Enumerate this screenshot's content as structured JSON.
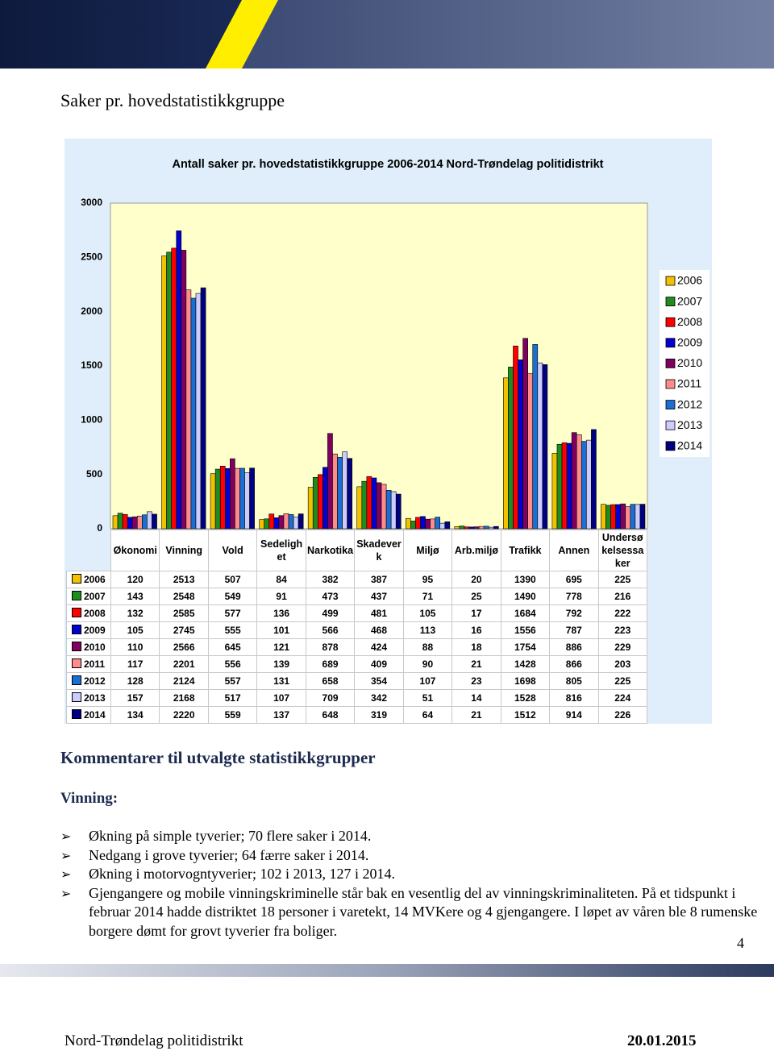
{
  "page_title": "Saker pr. hovedstatistikkgruppe",
  "chart_data": {
    "type": "bar",
    "title": "Antall saker pr. hovedstatistikkgruppe 2006-2014 Nord-Trøndelag politidistrikt",
    "categories": [
      "Økonomi",
      "Vinning",
      "Vold",
      "Sedelighet",
      "Narkotika",
      "Skadeverk",
      "Miljø",
      "Arb.miljø",
      "Trafikk",
      "Annen",
      "Undersøkelsessaker"
    ],
    "series": [
      {
        "name": "2006",
        "color": "#f2c200",
        "values": [
          120,
          2513,
          507,
          84,
          382,
          387,
          95,
          20,
          1390,
          695,
          225
        ]
      },
      {
        "name": "2007",
        "color": "#1e8c1e",
        "values": [
          143,
          2548,
          549,
          91,
          473,
          437,
          71,
          25,
          1490,
          778,
          216
        ]
      },
      {
        "name": "2008",
        "color": "#ff0000",
        "values": [
          132,
          2585,
          577,
          136,
          499,
          481,
          105,
          17,
          1684,
          792,
          222
        ]
      },
      {
        "name": "2009",
        "color": "#0000d0",
        "values": [
          105,
          2745,
          555,
          101,
          566,
          468,
          113,
          16,
          1556,
          787,
          223
        ]
      },
      {
        "name": "2010",
        "color": "#800060",
        "values": [
          110,
          2566,
          645,
          121,
          878,
          424,
          88,
          18,
          1754,
          886,
          229
        ]
      },
      {
        "name": "2011",
        "color": "#ff8c8c",
        "values": [
          117,
          2201,
          556,
          139,
          689,
          409,
          90,
          21,
          1428,
          866,
          203
        ]
      },
      {
        "name": "2012",
        "color": "#1a6fd0",
        "values": [
          128,
          2124,
          557,
          131,
          658,
          354,
          107,
          23,
          1698,
          805,
          225
        ]
      },
      {
        "name": "2013",
        "color": "#ccccff",
        "values": [
          157,
          2168,
          517,
          107,
          709,
          342,
          51,
          14,
          1528,
          816,
          224
        ]
      },
      {
        "name": "2014",
        "color": "#000080",
        "values": [
          134,
          2220,
          559,
          137,
          648,
          319,
          64,
          21,
          1512,
          914,
          226
        ]
      }
    ],
    "ylim": [
      0,
      3000
    ],
    "yticks": [
      0,
      500,
      1000,
      1500,
      2000,
      2500,
      3000
    ],
    "grid": false,
    "legend": "right"
  },
  "section_title": "Kommentarer til utvalgte statistikkgrupper",
  "subsection": "Vinning:",
  "bullets": [
    "Økning på simple tyverier; 70 flere saker i 2014.",
    "Nedgang i grove tyverier; 64 færre saker i 2014.",
    "Økning i motorvogntyverier; 102 i 2013, 127 i 2014.",
    "Gjengangere og mobile vinningskriminelle står bak en vesentlig del av vinningskriminaliteten. På et tidspunkt i februar 2014 hadde distriktet 18 personer i varetekt, 14 MVKere og 4 gjengangere. I løpet av våren ble 8 rumenske borgere dømt for grovt tyverier fra boliger."
  ],
  "page_number": "4",
  "footer": {
    "left": "Nord-Trøndelag politidistrikt",
    "right": "20.01.2015"
  }
}
